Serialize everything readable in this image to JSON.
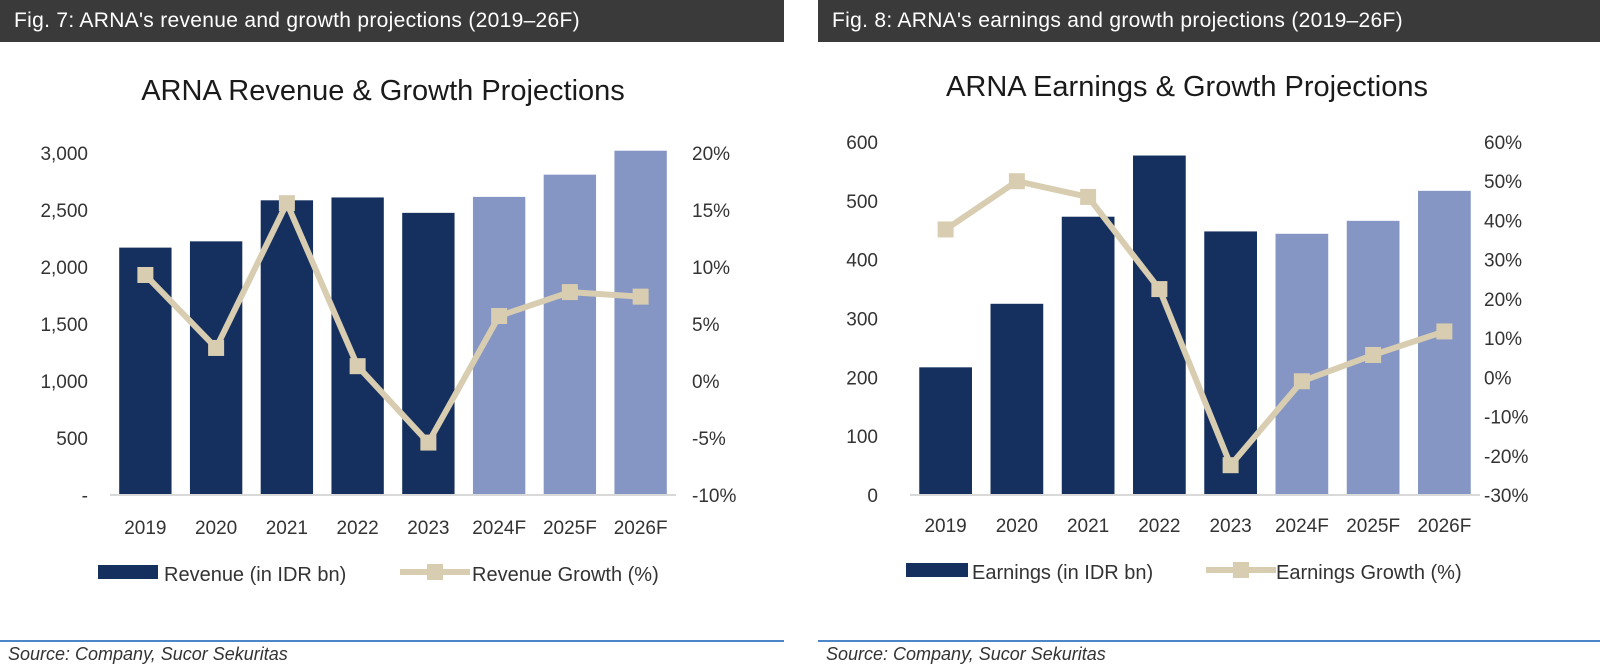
{
  "source_text": "Source: Company, Sucor Sekuritas",
  "colors": {
    "actual": "#15305e",
    "forecast": "#8596c4",
    "line": "#d8cdb0",
    "header_bg": "#3a3a3a",
    "source_rule": "#4a86c8"
  },
  "chart_data": [
    {
      "type": "bar",
      "figure_label": "Fig. 7: ARNA's revenue and growth projections (2019–26F)",
      "title": "ARNA Revenue & Growth Projections",
      "categories": [
        "2019",
        "2020",
        "2021",
        "2022",
        "2023",
        "2024F",
        "2025F",
        "2026F"
      ],
      "forecast_from_index": 5,
      "ylim": [
        0,
        3000
      ],
      "y_ticks": [
        0,
        500,
        1000,
        1500,
        2000,
        2500,
        3000
      ],
      "y_tick_labels": [
        "-",
        "500",
        "1,000",
        "1,500",
        "2,000",
        "2,500",
        "3,000"
      ],
      "y2lim": [
        -10,
        20
      ],
      "y2_ticks": [
        -10,
        -5,
        0,
        5,
        10,
        15,
        20
      ],
      "y2_tick_labels": [
        "-10%",
        "-5%",
        "0%",
        "5%",
        "10%",
        "15%",
        "20%"
      ],
      "series": [
        {
          "name": "Revenue (in IDR bn)",
          "kind": "bar",
          "axis": "left",
          "values": [
            2170,
            2225,
            2585,
            2610,
            2475,
            2615,
            2810,
            3020
          ]
        },
        {
          "name": "Revenue Growth (%)",
          "kind": "line",
          "axis": "right",
          "values": [
            9.3,
            2.9,
            15.6,
            1.3,
            -5.4,
            5.7,
            7.8,
            7.4
          ]
        }
      ],
      "grid": false,
      "legend_position": "bottom"
    },
    {
      "type": "bar",
      "figure_label": "Fig. 8: ARNA's earnings and growth projections (2019–26F)",
      "title": "ARNA Earnings & Growth Projections",
      "categories": [
        "2019",
        "2020",
        "2021",
        "2022",
        "2023",
        "2024F",
        "2025F",
        "2026F"
      ],
      "forecast_from_index": 5,
      "ylim": [
        0,
        600
      ],
      "y_ticks": [
        0,
        100,
        200,
        300,
        400,
        500,
        600
      ],
      "y_tick_labels": [
        "0",
        "100",
        "200",
        "300",
        "400",
        "500",
        "600"
      ],
      "y2lim": [
        -30,
        60
      ],
      "y2_ticks": [
        -30,
        -20,
        -10,
        0,
        10,
        20,
        30,
        40,
        50,
        60
      ],
      "y2_tick_labels": [
        "-30%",
        "-20%",
        "-10%",
        "0%",
        "10%",
        "20%",
        "30%",
        "40%",
        "50%",
        "60%"
      ],
      "series": [
        {
          "name": "Earnings (in IDR bn)",
          "kind": "bar",
          "axis": "left",
          "values": [
            217,
            325,
            473,
            577,
            448,
            444,
            466,
            517
          ]
        },
        {
          "name": "Earnings Growth (%)",
          "kind": "line",
          "axis": "right",
          "values": [
            37.7,
            50,
            46,
            22.5,
            -22.4,
            -1,
            5.7,
            11.7
          ]
        }
      ],
      "grid": false,
      "legend_position": "bottom"
    }
  ]
}
